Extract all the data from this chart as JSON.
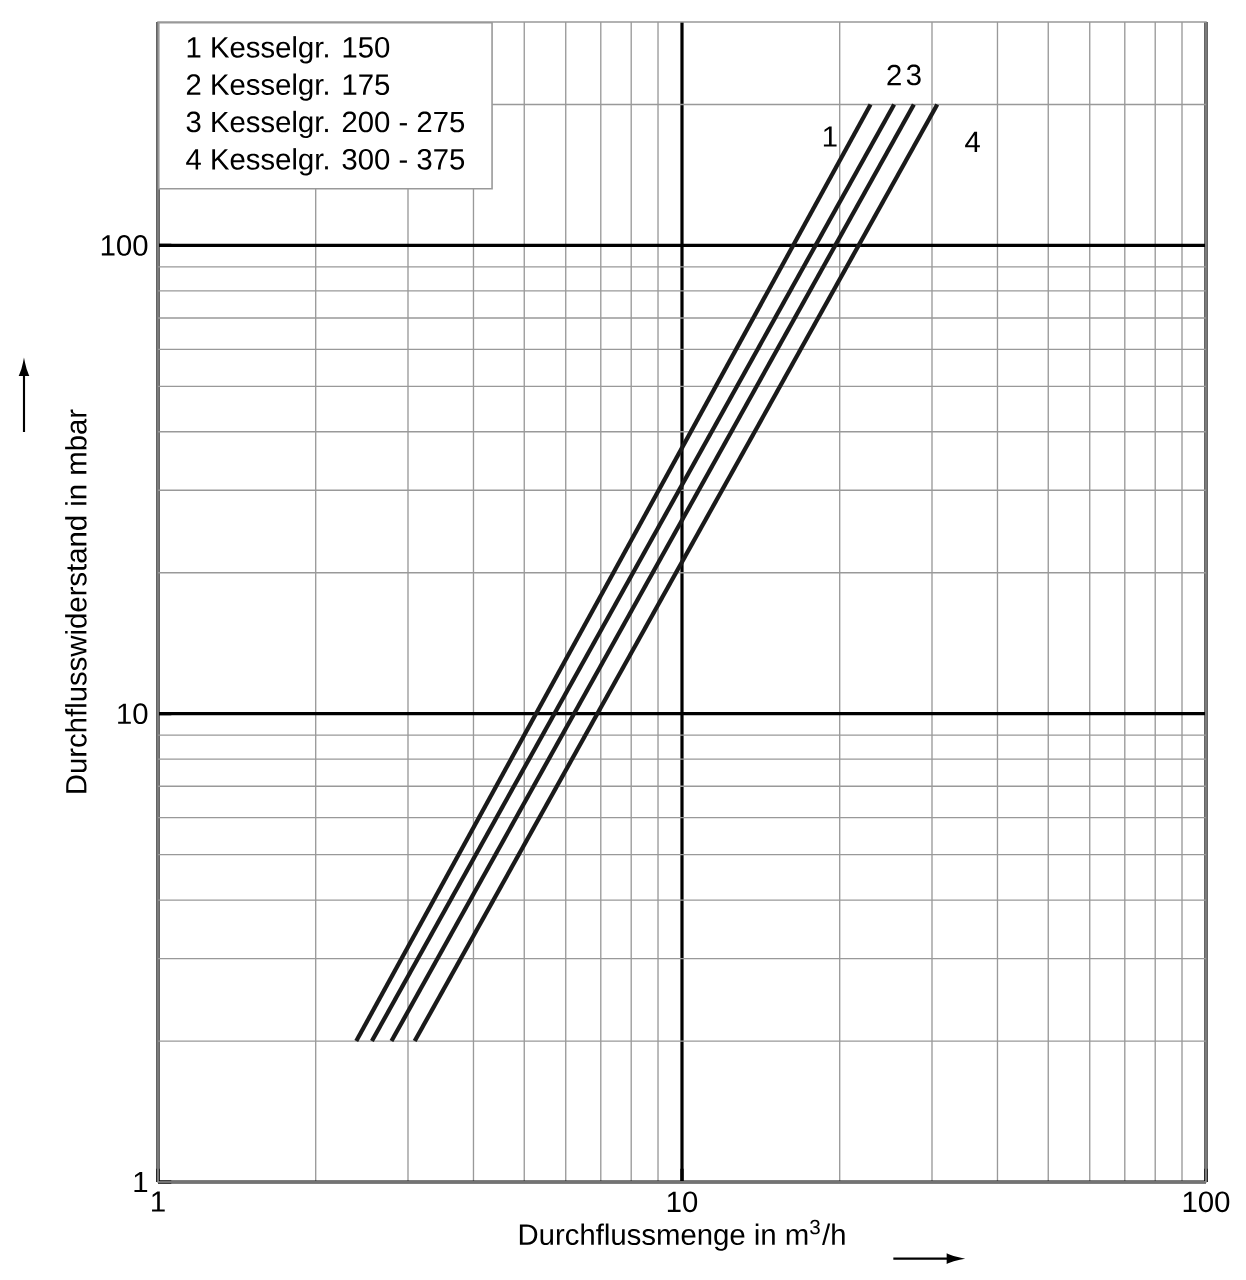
{
  "chart_data": {
    "type": "line",
    "xlabel": "Durchflussmenge  in m$^{3}$/h",
    "ylabel": "Durchflusswiderstand  in mbar",
    "log": "xy",
    "grid": true,
    "line_style": "solid",
    "xlim": [
      1,
      100
    ],
    "ylim": [
      1,
      300
    ],
    "xticks": [
      1,
      10,
      100
    ],
    "yticks": [
      1,
      10,
      100
    ],
    "series": [
      {
        "name": "1",
        "color": "#1a1a1a",
        "x": [
          2.39,
          22.9
        ],
        "values": [
          2,
          200
        ]
      },
      {
        "name": "2",
        "color": "#1a1a1a",
        "x": [
          2.56,
          25.4
        ],
        "values": [
          2,
          200
        ]
      },
      {
        "name": "3",
        "color": "#1a1a1a",
        "x": [
          2.79,
          27.7
        ],
        "values": [
          2,
          200
        ]
      },
      {
        "name": "4",
        "color": "#1a1a1a",
        "x": [
          3.09,
          30.7
        ],
        "values": [
          2,
          200
        ]
      }
    ],
    "annotations": [
      "1  Kesselgr. 150",
      "2  Kesselgr. 175",
      "3  Kesselgr. 200 - 275",
      "4  Kesselgr. 300 - 375"
    ]
  }
}
